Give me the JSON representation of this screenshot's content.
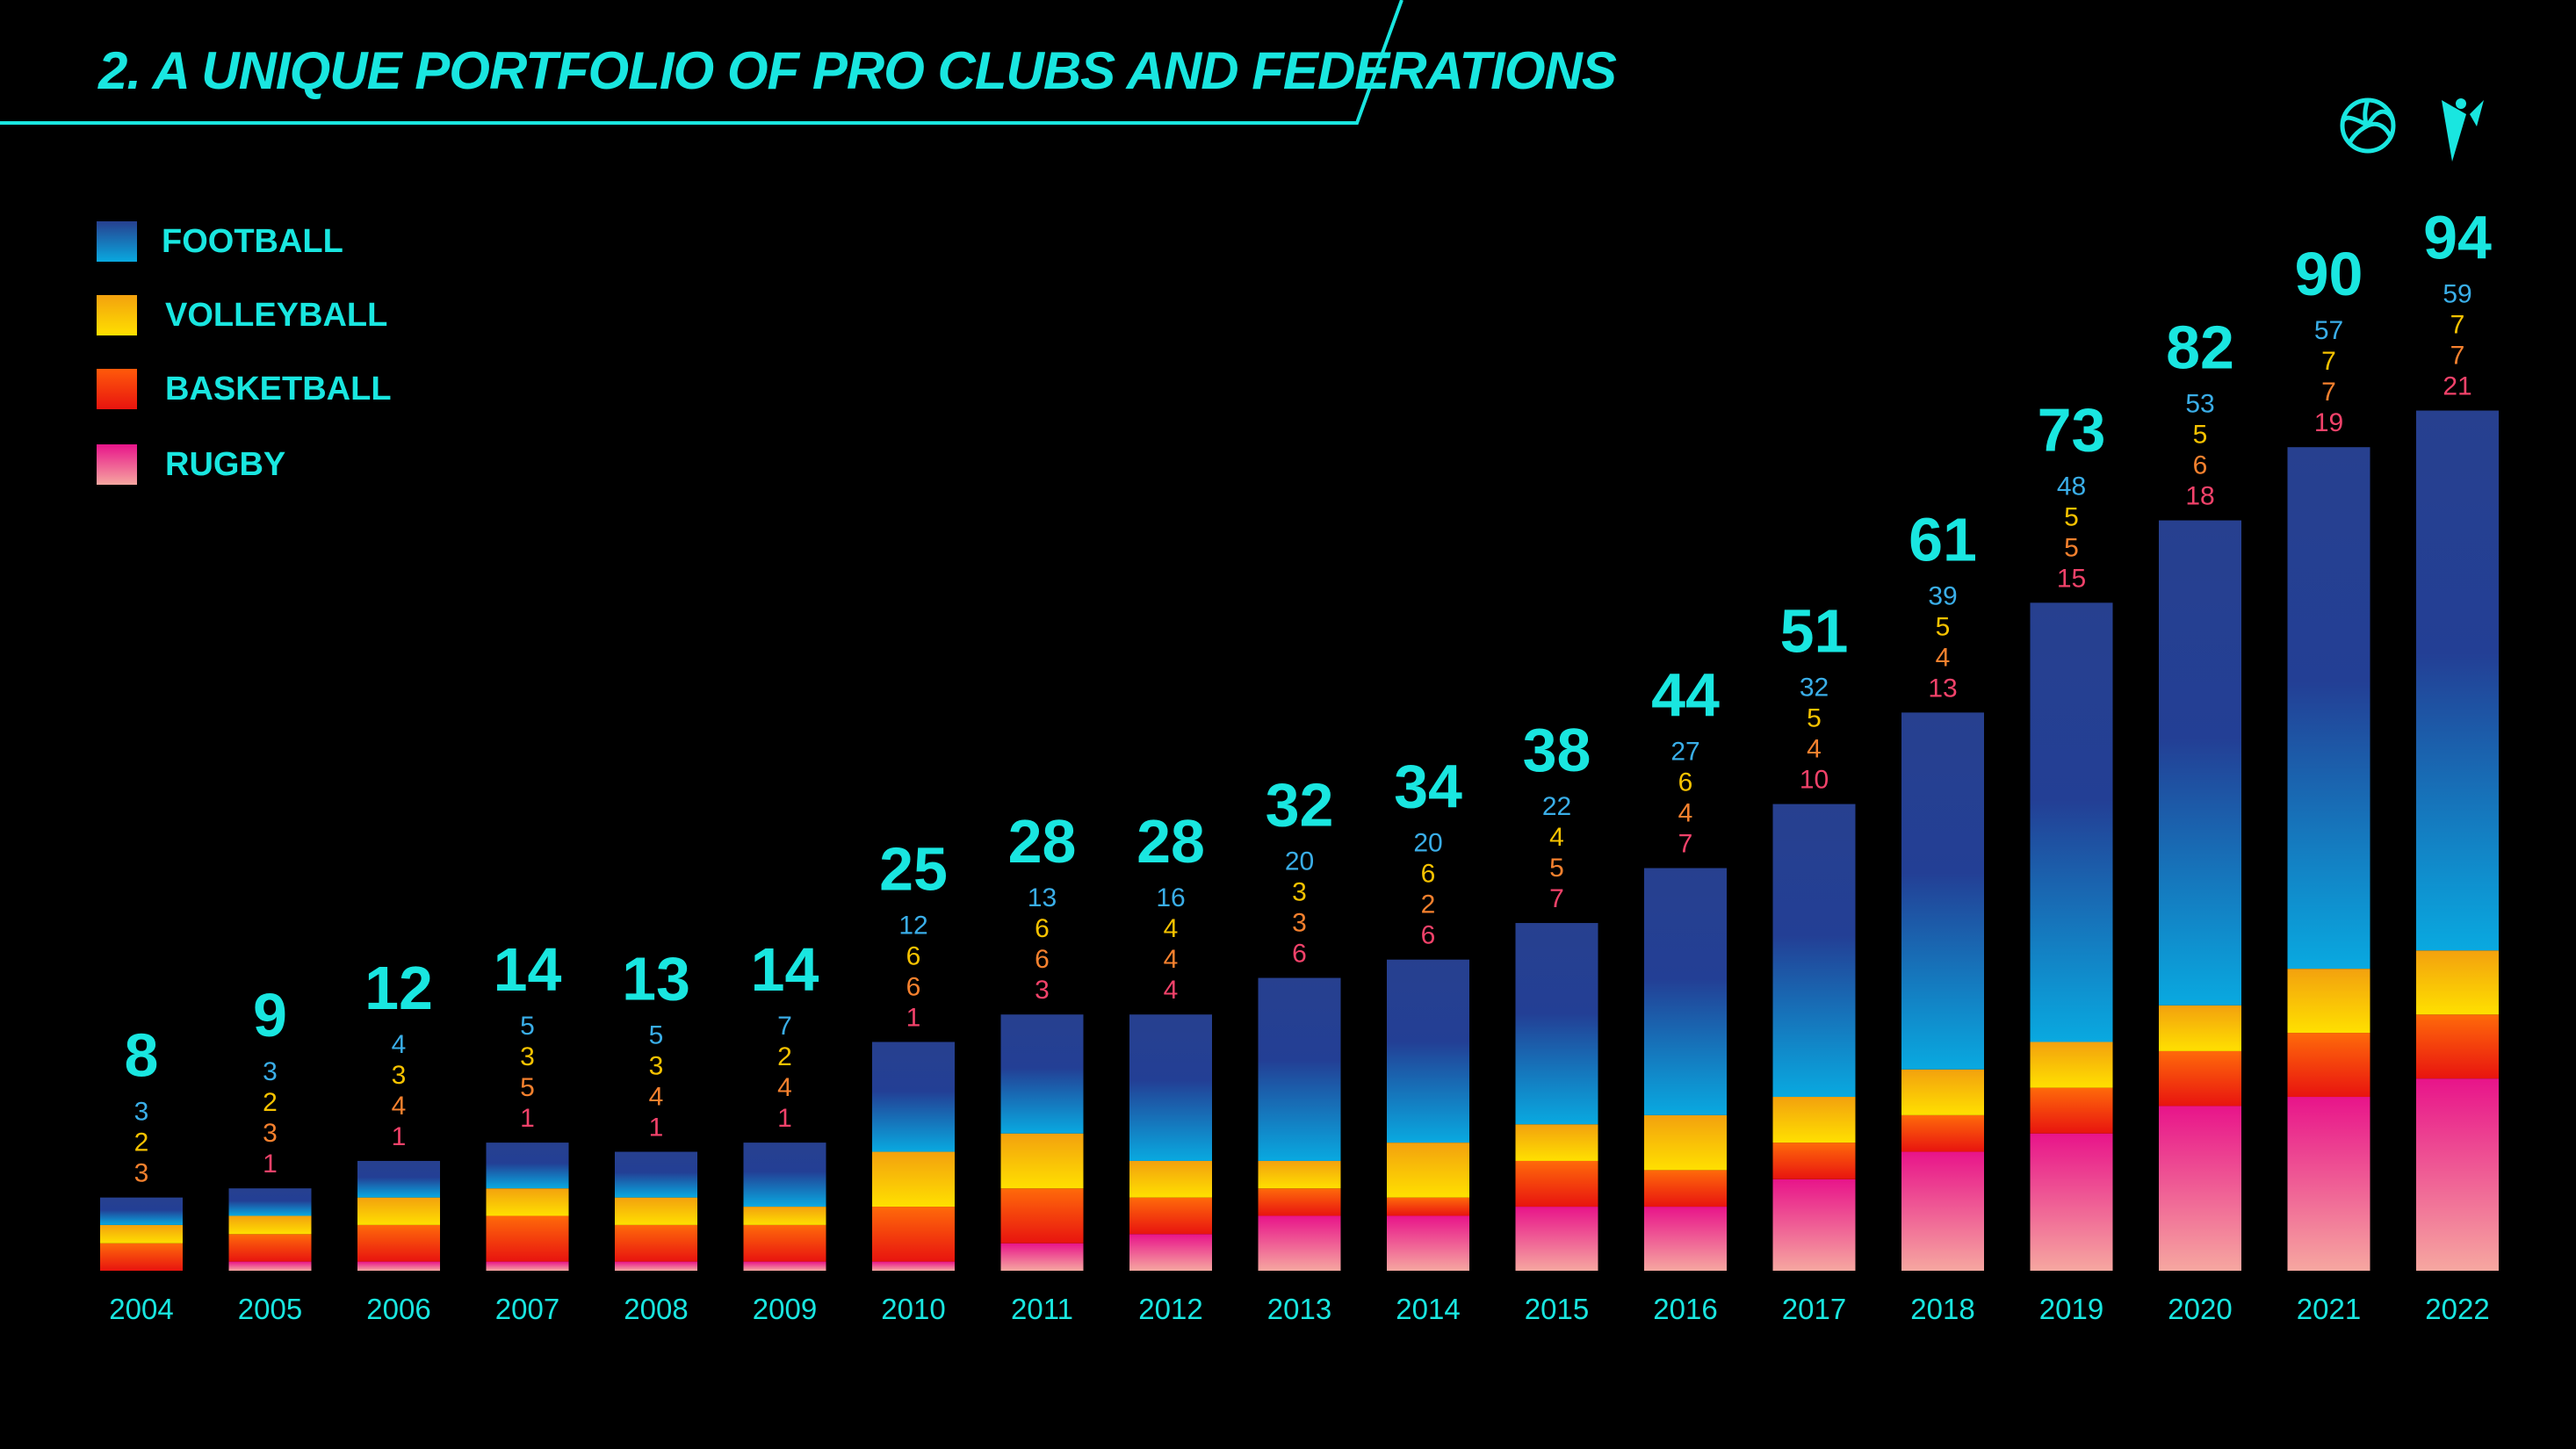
{
  "title": "2. A UNIQUE PORTFOLIO OF PRO CLUBS AND FEDERATIONS",
  "colors": {
    "accent": "#19e6e0",
    "football": [
      "#27408f",
      "#09a9e0"
    ],
    "volleyball": [
      "#f3a10e",
      "#ffe000"
    ],
    "basketball": [
      "#ff5a0a",
      "#e8140f"
    ],
    "rugby": [
      "#e8148a",
      "#f6a7a0"
    ],
    "label_football": "#3aaee8",
    "label_volleyball": "#f7c300",
    "label_basketball": "#f6812e",
    "label_rugby": "#f2426a"
  },
  "icons": [
    "volleyball-logo-icon",
    "brand-logo-icon"
  ],
  "chart_data": {
    "type": "bar",
    "stacked": true,
    "categories": [
      "2004",
      "2005",
      "2006",
      "2007",
      "2008",
      "2009",
      "2010",
      "2011",
      "2012",
      "2013",
      "2014",
      "2015",
      "2016",
      "2017",
      "2018",
      "2019",
      "2020",
      "2021",
      "2022"
    ],
    "totals": [
      8,
      9,
      12,
      14,
      13,
      14,
      25,
      28,
      28,
      32,
      34,
      38,
      44,
      51,
      61,
      73,
      82,
      90,
      94
    ],
    "series": [
      {
        "name": "FOOTBALL",
        "values": [
          3,
          3,
          4,
          5,
          5,
          7,
          12,
          13,
          16,
          20,
          20,
          22,
          27,
          32,
          39,
          48,
          53,
          57,
          59
        ]
      },
      {
        "name": "VOLLEYBALL",
        "values": [
          2,
          2,
          3,
          3,
          3,
          2,
          6,
          6,
          4,
          3,
          6,
          4,
          6,
          5,
          5,
          5,
          5,
          7,
          7
        ]
      },
      {
        "name": "BASKETBALL",
        "values": [
          3,
          3,
          4,
          5,
          4,
          4,
          6,
          6,
          4,
          3,
          2,
          5,
          4,
          4,
          4,
          5,
          6,
          7,
          7
        ]
      },
      {
        "name": "RUGBY",
        "values": [
          null,
          1,
          1,
          1,
          1,
          1,
          1,
          3,
          4,
          6,
          6,
          7,
          7,
          10,
          13,
          15,
          18,
          19,
          21
        ]
      }
    ],
    "ylim": [
      0,
      100
    ],
    "legend_position": "top-left",
    "grid": false
  }
}
